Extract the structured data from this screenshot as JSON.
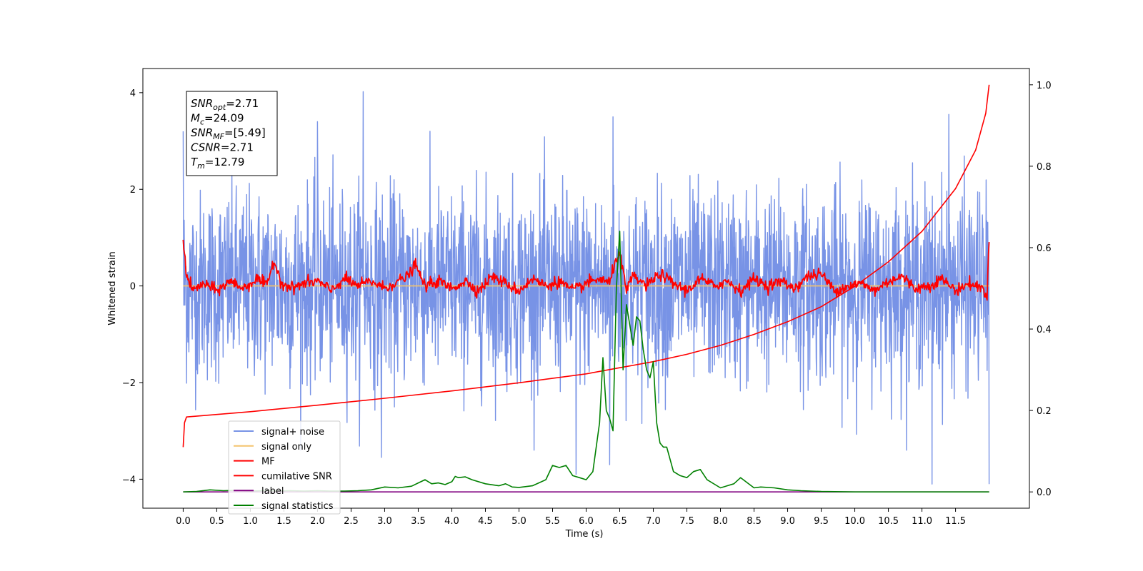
{
  "chart_data": {
    "type": "line",
    "title": "",
    "xlabel": "Time (s)",
    "ylabel": "Whitened strain",
    "ylabel_right": "",
    "xlim": [
      -0.6,
      12.6
    ],
    "ylim": [
      -4.6,
      4.5
    ],
    "ylim_right": [
      -0.04,
      1.04
    ],
    "x_ticks": [
      0.0,
      0.5,
      1.0,
      1.5,
      2.0,
      2.5,
      3.0,
      3.5,
      4.0,
      4.5,
      5.0,
      5.5,
      6.0,
      6.5,
      7.0,
      7.5,
      8.0,
      8.5,
      9.0,
      9.5,
      10.0,
      10.5,
      11.0,
      11.5
    ],
    "x_tick_labels": [
      "0.0",
      "0.5",
      "1.0",
      "1.5",
      "2.0",
      "2.5",
      "3.0",
      "3.5",
      "4.0",
      "4.5",
      "5.0",
      "5.5",
      "6.0",
      "6.5",
      "7.0",
      "7.5",
      "8.0",
      "8.5",
      "9.0",
      "9.5",
      "10.0",
      "10.5",
      "11.0",
      "11.5"
    ],
    "y_ticks": [
      4,
      2,
      0,
      -2,
      -4
    ],
    "y_tick_labels": [
      "4",
      "2",
      "0",
      "−2",
      "−4"
    ],
    "y_right_ticks": [
      1.0,
      0.8,
      0.6,
      0.4,
      0.2,
      0.0
    ],
    "y_right_tick_labels": [
      "1.0",
      "0.8",
      "0.6",
      "0.4",
      "0.2",
      "0.0"
    ],
    "grid": false,
    "legend_position": "lower-left",
    "stats_box": {
      "lines": [
        {
          "sym": "SNR",
          "sub": "opt",
          "value": "=2.71"
        },
        {
          "sym": "M",
          "sub": "c",
          "value": "=24.09"
        },
        {
          "sym": "SNR",
          "sub": "MF",
          "value": "=[5.49]"
        },
        {
          "sym": "CSNR",
          "sub": "",
          "value": "=2.71"
        },
        {
          "sym": "T",
          "sub": "m",
          "value": "=12.79"
        }
      ]
    },
    "series": [
      {
        "name": "signal+ noise",
        "axis": "left",
        "color": "#7893e6",
        "style": "noise",
        "amplitude_std": 1.15,
        "x_range": [
          0.0,
          12.0
        ],
        "spikes": [
          [
            0.0,
            3.2
          ],
          [
            2.68,
            4.02
          ],
          [
            2.0,
            3.4
          ],
          [
            6.4,
            3.5
          ],
          [
            11.4,
            3.55
          ],
          [
            11.15,
            -4.1
          ],
          [
            12.0,
            -4.1
          ],
          [
            5.85,
            -3.9
          ],
          [
            6.35,
            -3.7
          ],
          [
            2.95,
            -3.55
          ]
        ]
      },
      {
        "name": "signal only",
        "axis": "left",
        "color": "#f4c36c",
        "style": "flat",
        "x": [
          0.0,
          12.0
        ],
        "y": [
          0.0,
          0.0
        ]
      },
      {
        "name": "MF",
        "axis": "left",
        "color": "#ff0000",
        "style": "mf",
        "x": [
          0.0,
          0.05,
          0.15,
          0.3,
          0.5,
          0.7,
          0.9,
          1.1,
          1.25,
          1.35,
          1.45,
          1.6,
          1.8,
          2.0,
          2.2,
          2.4,
          2.6,
          2.8,
          3.0,
          3.2,
          3.35,
          3.45,
          3.6,
          3.8,
          4.0,
          4.2,
          4.4,
          4.6,
          4.8,
          5.0,
          5.2,
          5.4,
          5.6,
          5.8,
          6.0,
          6.2,
          6.35,
          6.45,
          6.5,
          6.6,
          6.7,
          6.9,
          7.1,
          7.3,
          7.5,
          7.7,
          7.9,
          8.1,
          8.3,
          8.5,
          8.7,
          8.9,
          9.1,
          9.3,
          9.5,
          9.7,
          9.9,
          10.1,
          10.3,
          10.5,
          10.7,
          10.9,
          11.1,
          11.3,
          11.5,
          11.7,
          11.9,
          11.97,
          12.0
        ],
        "y": [
          1.0,
          0.2,
          -0.1,
          0.05,
          -0.1,
          0.1,
          -0.05,
          0.15,
          0.0,
          0.55,
          0.1,
          -0.05,
          0.05,
          0.1,
          -0.1,
          0.15,
          0.0,
          0.1,
          -0.05,
          0.1,
          0.2,
          0.45,
          0.0,
          0.1,
          -0.05,
          0.1,
          -0.1,
          0.2,
          0.05,
          -0.1,
          0.15,
          0.0,
          0.1,
          -0.1,
          0.05,
          0.15,
          0.05,
          0.6,
          0.65,
          -0.1,
          0.2,
          0.0,
          0.25,
          0.05,
          -0.1,
          0.15,
          0.0,
          0.1,
          -0.1,
          0.15,
          0.0,
          0.1,
          -0.05,
          0.2,
          0.25,
          -0.1,
          0.0,
          0.05,
          -0.1,
          0.1,
          0.2,
          -0.05,
          0.0,
          0.15,
          -0.1,
          0.05,
          -0.05,
          -0.2,
          0.95
        ]
      },
      {
        "name": "cumilative SNR",
        "axis": "right",
        "color": "#ff0000",
        "style": "line",
        "x": [
          0.0,
          0.02,
          0.05,
          1.0,
          2.0,
          3.0,
          4.0,
          5.0,
          6.0,
          6.5,
          7.0,
          7.5,
          8.0,
          8.5,
          9.0,
          9.5,
          10.0,
          10.5,
          11.0,
          11.5,
          11.8,
          11.95,
          12.0
        ],
        "y": [
          0.11,
          0.17,
          0.184,
          0.197,
          0.213,
          0.23,
          0.248,
          0.268,
          0.29,
          0.305,
          0.32,
          0.338,
          0.36,
          0.387,
          0.418,
          0.455,
          0.505,
          0.565,
          0.64,
          0.745,
          0.84,
          0.93,
          1.0
        ]
      },
      {
        "name": "label",
        "axis": "right",
        "color": "#800080",
        "style": "line",
        "x": [
          0.0,
          12.0
        ],
        "y": [
          0.0,
          0.0
        ]
      },
      {
        "name": "signal statistics",
        "axis": "right",
        "color": "#008000",
        "style": "line",
        "x": [
          0.0,
          0.2,
          0.4,
          0.6,
          0.8,
          1.0,
          1.2,
          1.4,
          1.6,
          1.8,
          2.0,
          2.2,
          2.4,
          2.6,
          2.8,
          3.0,
          3.2,
          3.4,
          3.5,
          3.6,
          3.7,
          3.8,
          3.9,
          4.0,
          4.05,
          4.1,
          4.2,
          4.3,
          4.5,
          4.7,
          4.8,
          4.9,
          5.0,
          5.2,
          5.4,
          5.5,
          5.6,
          5.7,
          5.8,
          5.9,
          6.0,
          6.1,
          6.2,
          6.25,
          6.3,
          6.35,
          6.4,
          6.45,
          6.5,
          6.55,
          6.6,
          6.7,
          6.75,
          6.8,
          6.85,
          6.9,
          6.95,
          7.0,
          7.05,
          7.1,
          7.15,
          7.2,
          7.3,
          7.4,
          7.5,
          7.6,
          7.7,
          7.8,
          8.0,
          8.2,
          8.3,
          8.5,
          8.6,
          8.8,
          9.0,
          9.2,
          9.5,
          10.0,
          11.0,
          12.0
        ],
        "y": [
          0.0,
          0.001,
          0.005,
          0.003,
          0.004,
          0.002,
          0.003,
          0.002,
          0.003,
          0.002,
          0.003,
          0.002,
          0.002,
          0.003,
          0.005,
          0.012,
          0.01,
          0.014,
          0.022,
          0.03,
          0.02,
          0.022,
          0.018,
          0.025,
          0.038,
          0.035,
          0.037,
          0.03,
          0.02,
          0.015,
          0.02,
          0.012,
          0.011,
          0.015,
          0.03,
          0.065,
          0.06,
          0.065,
          0.04,
          0.035,
          0.03,
          0.05,
          0.17,
          0.33,
          0.2,
          0.18,
          0.15,
          0.5,
          0.64,
          0.3,
          0.46,
          0.36,
          0.43,
          0.42,
          0.35,
          0.3,
          0.28,
          0.32,
          0.17,
          0.12,
          0.11,
          0.11,
          0.05,
          0.04,
          0.035,
          0.05,
          0.055,
          0.03,
          0.01,
          0.02,
          0.035,
          0.01,
          0.012,
          0.01,
          0.005,
          0.003,
          0.001,
          0.0,
          0.0,
          0.0
        ]
      }
    ]
  }
}
